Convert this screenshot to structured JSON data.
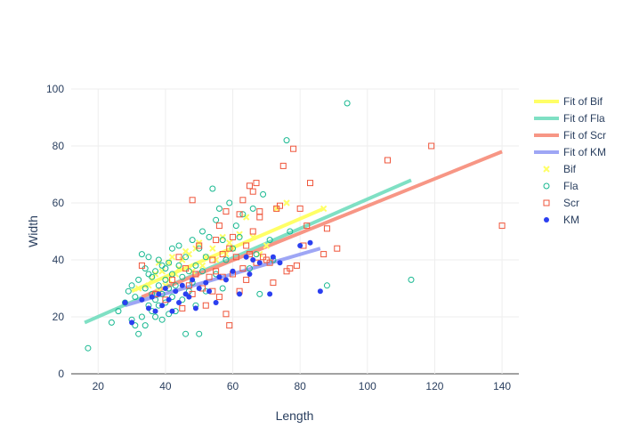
{
  "chart_data": {
    "type": "scatter",
    "xlabel": "Length",
    "ylabel": "Width",
    "xlim": [
      12,
      145
    ],
    "ylim": [
      0,
      100
    ],
    "x_ticks": [
      20,
      40,
      60,
      80,
      100,
      120,
      140
    ],
    "y_ticks": [
      0,
      20,
      40,
      60,
      80,
      100
    ],
    "grid": true,
    "legend_placement": "right",
    "colors": {
      "Bif": "#ffff66",
      "Fla": "#17b890",
      "Scr": "#ef553b",
      "KM": "#2b3ff0",
      "Fit of Bif": "#ffff66",
      "Fit of Fla": "#7fe0c4",
      "Fit of Scr": "#f79685",
      "Fit of KM": "#9ea6f5"
    },
    "fits": [
      {
        "name": "Fit of Bif",
        "x": [
          30,
          87
        ],
        "y": [
          29,
          58
        ]
      },
      {
        "name": "Fit of Fla",
        "x": [
          16,
          113
        ],
        "y": [
          18,
          68
        ]
      },
      {
        "name": "Fit of Scr",
        "x": [
          33,
          140
        ],
        "y": [
          27,
          78
        ]
      },
      {
        "name": "Fit of KM",
        "x": [
          28,
          86
        ],
        "y": [
          24,
          44
        ]
      }
    ],
    "series": [
      {
        "name": "Bif",
        "marker": "x",
        "x": [
          32,
          35,
          36,
          37,
          38,
          38,
          39,
          40,
          41,
          41,
          42,
          43,
          44,
          45,
          46,
          47,
          48,
          49,
          50,
          51,
          52,
          54,
          55,
          57,
          58,
          59,
          60,
          62,
          64,
          66,
          68,
          70,
          73,
          76,
          87
        ],
        "y": [
          30,
          31,
          33,
          35,
          29,
          39,
          36,
          31,
          33,
          39,
          41,
          35,
          37,
          40,
          43,
          42,
          36,
          44,
          46,
          38,
          41,
          44,
          40,
          48,
          42,
          46,
          44,
          49,
          55,
          48,
          42,
          45,
          58,
          60,
          58
        ]
      },
      {
        "name": "Fla",
        "marker": "circle-open",
        "x": [
          17,
          24,
          26,
          28,
          29,
          30,
          30,
          31,
          31,
          32,
          32,
          33,
          33,
          34,
          34,
          34,
          35,
          35,
          35,
          36,
          36,
          36,
          37,
          37,
          37,
          38,
          38,
          38,
          39,
          39,
          39,
          40,
          40,
          40,
          41,
          41,
          41,
          42,
          42,
          42,
          43,
          43,
          44,
          44,
          45,
          45,
          46,
          46,
          47,
          47,
          48,
          48,
          49,
          49,
          50,
          50,
          51,
          51,
          52,
          52,
          53,
          54,
          55,
          55,
          56,
          57,
          57,
          58,
          59,
          60,
          61,
          62,
          63,
          65,
          66,
          67,
          68,
          69,
          71,
          72,
          76,
          77,
          88,
          113,
          94
        ],
        "y": [
          9,
          18,
          22,
          25,
          29,
          19,
          31,
          17,
          27,
          14,
          33,
          20,
          42,
          17,
          30,
          37,
          24,
          35,
          41,
          22,
          34,
          28,
          26,
          36,
          20,
          40,
          31,
          24,
          38,
          28,
          19,
          33,
          25,
          37,
          21,
          30,
          39,
          27,
          35,
          44,
          31,
          22,
          38,
          45,
          26,
          34,
          14,
          41,
          29,
          36,
          47,
          32,
          38,
          24,
          44,
          14,
          50,
          36,
          29,
          41,
          48,
          65,
          54,
          35,
          58,
          30,
          47,
          40,
          60,
          44,
          52,
          48,
          56,
          37,
          58,
          42,
          28,
          63,
          47,
          40,
          82,
          50,
          31,
          33,
          95
        ]
      },
      {
        "name": "Scr",
        "marker": "square-open",
        "x": [
          33,
          37,
          40,
          42,
          44,
          45,
          46,
          47,
          48,
          48,
          49,
          50,
          51,
          52,
          53,
          54,
          54,
          55,
          55,
          56,
          56,
          57,
          57,
          58,
          58,
          59,
          59,
          60,
          60,
          61,
          62,
          62,
          63,
          63,
          64,
          64,
          65,
          65,
          66,
          66,
          67,
          67,
          68,
          68,
          69,
          70,
          71,
          72,
          73,
          74,
          75,
          76,
          77,
          78,
          79,
          80,
          81,
          82,
          83,
          87,
          88,
          91,
          106,
          119,
          140
        ],
        "y": [
          38,
          28,
          26,
          33,
          41,
          23,
          37,
          31,
          61,
          28,
          35,
          45,
          30,
          24,
          34,
          40,
          29,
          47,
          36,
          27,
          52,
          42,
          34,
          57,
          21,
          44,
          17,
          48,
          35,
          41,
          29,
          56,
          37,
          61,
          45,
          33,
          66,
          42,
          50,
          64,
          39,
          67,
          55,
          57,
          41,
          40,
          39,
          32,
          58,
          59,
          73,
          36,
          37,
          79,
          38,
          58,
          45,
          52,
          67,
          42,
          51,
          44,
          75,
          80,
          52
        ]
      },
      {
        "name": "KM",
        "marker": "circle",
        "x": [
          28,
          30,
          33,
          35,
          36,
          37,
          38,
          39,
          40,
          41,
          42,
          43,
          44,
          45,
          46,
          47,
          48,
          49,
          50,
          52,
          53,
          55,
          56,
          58,
          60,
          62,
          64,
          65,
          66,
          68,
          71,
          72,
          74,
          80,
          83,
          86
        ],
        "y": [
          25,
          18,
          26,
          23,
          27,
          22,
          28,
          24,
          30,
          26,
          22,
          29,
          25,
          31,
          28,
          27,
          33,
          23,
          30,
          32,
          29,
          25,
          34,
          33,
          36,
          28,
          41,
          35,
          40,
          39,
          28,
          41,
          39,
          45,
          46,
          29
        ]
      }
    ],
    "legend": [
      {
        "label": "Fit of Bif",
        "symbol": "line"
      },
      {
        "label": "Fit of Fla",
        "symbol": "line"
      },
      {
        "label": "Fit of Scr",
        "symbol": "line"
      },
      {
        "label": "Fit of KM",
        "symbol": "line"
      },
      {
        "label": "Bif",
        "symbol": "x"
      },
      {
        "label": "Fla",
        "symbol": "circle-open"
      },
      {
        "label": "Scr",
        "symbol": "square-open"
      },
      {
        "label": "KM",
        "symbol": "circle"
      }
    ]
  }
}
